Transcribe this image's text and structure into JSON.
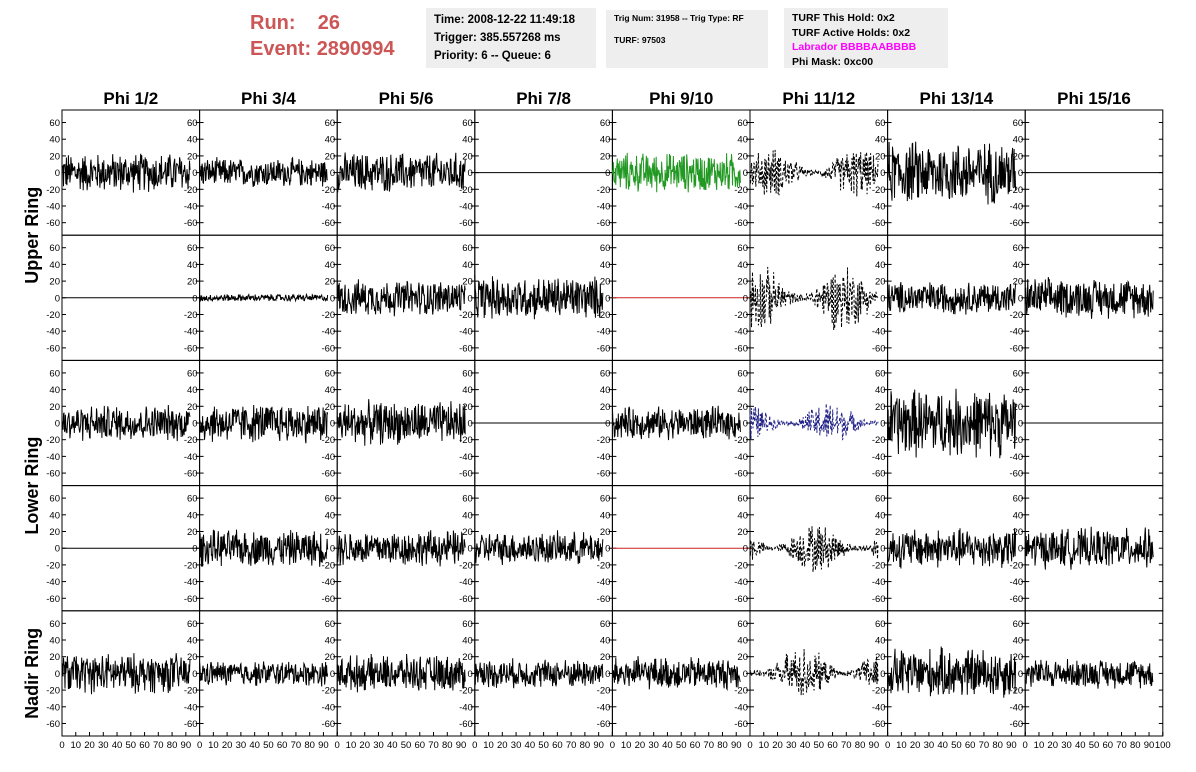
{
  "header": {
    "run_label": "Run:",
    "run_value": "26",
    "event_label": "Event:",
    "event_value": "2890994",
    "time": "Time: 2008-12-22 11:49:18",
    "trigger": "Trigger: 385.557268 ms",
    "priority": "Priority: 6 -- Queue: 6",
    "trig_num": "Trig Num: 31958 -- Trig Type: RF",
    "turf": "TURF: 97503",
    "turf_this_hold": "TURF This Hold: 0x2",
    "turf_active_holds": "TURF Active Holds: 0x2",
    "labrador": "Labrador BBBBAABBBB",
    "phi_mask": "Phi Mask: 0xc00"
  },
  "colors": {
    "run_text": "#cc5555",
    "labrador_text": "#ff00ff",
    "trace_default": "#000000",
    "trace_green": "#229922",
    "trace_blue": "#222288",
    "trace_red": "#cc2222",
    "panel_bg": "#eeeeee"
  },
  "chart_data": {
    "type": "line",
    "columns": [
      "Phi 1/2",
      "Phi 3/4",
      "Phi 5/6",
      "Phi 7/8",
      "Phi 9/10",
      "Phi 11/12",
      "Phi 13/14",
      "Phi 15/16"
    ],
    "ring_labels": [
      {
        "name": "Upper Ring",
        "rows": [
          0,
          1
        ]
      },
      {
        "name": "Lower Ring",
        "rows": [
          2,
          3
        ]
      },
      {
        "name": "Nadir Ring",
        "rows": [
          4
        ]
      }
    ],
    "xlim": [
      0,
      100
    ],
    "ylim": [
      -75,
      75
    ],
    "y_ticks": [
      -60,
      -40,
      -20,
      0,
      20,
      40,
      60
    ],
    "x_ticks": [
      0,
      10,
      20,
      30,
      40,
      50,
      60,
      70,
      80,
      90,
      100
    ],
    "traces": [
      [
        {
          "style": "solid",
          "color": "#000000",
          "amp": 22
        },
        {
          "style": "solid",
          "color": "#000000",
          "amp": 16
        },
        {
          "style": "solid",
          "color": "#000000",
          "amp": 22
        },
        {
          "style": "flat",
          "color": "#000000",
          "amp": 0
        },
        {
          "style": "solid",
          "color": "#229922",
          "amp": 22
        },
        {
          "style": "dashed",
          "color": "#000000",
          "amp": 28
        },
        {
          "style": "solid",
          "color": "#000000",
          "amp": 35
        },
        {
          "style": "flat",
          "color": "#000000",
          "amp": 0
        }
      ],
      [
        {
          "style": "flat",
          "color": "#000000",
          "amp": 0
        },
        {
          "style": "solid",
          "color": "#000000",
          "amp": 4
        },
        {
          "style": "solid",
          "color": "#000000",
          "amp": 20
        },
        {
          "style": "solid",
          "color": "#000000",
          "amp": 24
        },
        {
          "style": "flat",
          "color": "#cc2222",
          "amp": 0
        },
        {
          "style": "dashed",
          "color": "#000000",
          "amp": 38
        },
        {
          "style": "solid",
          "color": "#000000",
          "amp": 18
        },
        {
          "style": "solid",
          "color": "#000000",
          "amp": 22
        }
      ],
      [
        {
          "style": "solid",
          "color": "#000000",
          "amp": 20
        },
        {
          "style": "solid",
          "color": "#000000",
          "amp": 22
        },
        {
          "style": "solid",
          "color": "#000000",
          "amp": 24
        },
        {
          "style": "flat",
          "color": "#000000",
          "amp": 0
        },
        {
          "style": "solid",
          "color": "#000000",
          "amp": 18
        },
        {
          "style": "dashed",
          "color": "#222288",
          "amp": 24
        },
        {
          "style": "solid",
          "color": "#000000",
          "amp": 38
        },
        {
          "style": "flat",
          "color": "#000000",
          "amp": 0
        }
      ],
      [
        {
          "style": "flat",
          "color": "#000000",
          "amp": 0
        },
        {
          "style": "solid",
          "color": "#000000",
          "amp": 20
        },
        {
          "style": "solid",
          "color": "#000000",
          "amp": 20
        },
        {
          "style": "solid",
          "color": "#000000",
          "amp": 18
        },
        {
          "style": "flat",
          "color": "#cc2222",
          "amp": 0
        },
        {
          "style": "dashed",
          "color": "#000000",
          "amp": 28
        },
        {
          "style": "solid",
          "color": "#000000",
          "amp": 22
        },
        {
          "style": "solid",
          "color": "#000000",
          "amp": 22
        }
      ],
      [
        {
          "style": "solid",
          "color": "#000000",
          "amp": 22
        },
        {
          "style": "solid",
          "color": "#000000",
          "amp": 14
        },
        {
          "style": "solid",
          "color": "#000000",
          "amp": 20
        },
        {
          "style": "solid",
          "color": "#000000",
          "amp": 16
        },
        {
          "style": "solid",
          "color": "#000000",
          "amp": 18
        },
        {
          "style": "dashed",
          "color": "#000000",
          "amp": 30
        },
        {
          "style": "solid",
          "color": "#000000",
          "amp": 28
        },
        {
          "style": "solid",
          "color": "#000000",
          "amp": 16
        }
      ]
    ]
  }
}
